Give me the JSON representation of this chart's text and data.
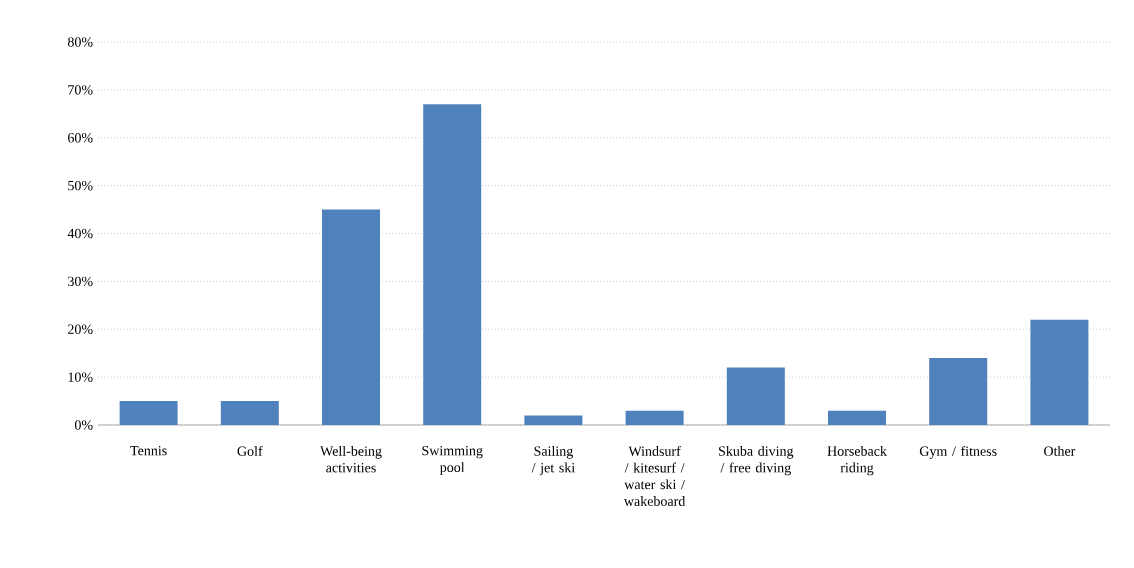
{
  "chart_data": {
    "type": "bar",
    "categories": [
      "Tennis",
      "Golf",
      "Well-being activities",
      "Swimming pool",
      "Sailing / jet ski",
      "Windsurf / kitesurf / water ski / wakeboard",
      "Skuba diving / free diving",
      "Horseback riding",
      "Gym / fitness",
      "Other"
    ],
    "values": [
      5,
      5,
      45,
      67,
      2,
      3,
      12,
      3,
      14,
      22
    ],
    "color": "#4f81bd",
    "ylim": [
      0,
      80
    ],
    "yticks": [
      {
        "value": 0,
        "label": "0%"
      },
      {
        "value": 10,
        "label": "10%"
      },
      {
        "value": 20,
        "label": "20%"
      },
      {
        "value": 30,
        "label": "30%"
      },
      {
        "value": 40,
        "label": "40%"
      },
      {
        "value": 50,
        "label": "50%"
      },
      {
        "value": 60,
        "label": "60%"
      },
      {
        "value": 70,
        "label": "70%"
      },
      {
        "value": 80,
        "label": "80%"
      }
    ],
    "grid": "y"
  }
}
